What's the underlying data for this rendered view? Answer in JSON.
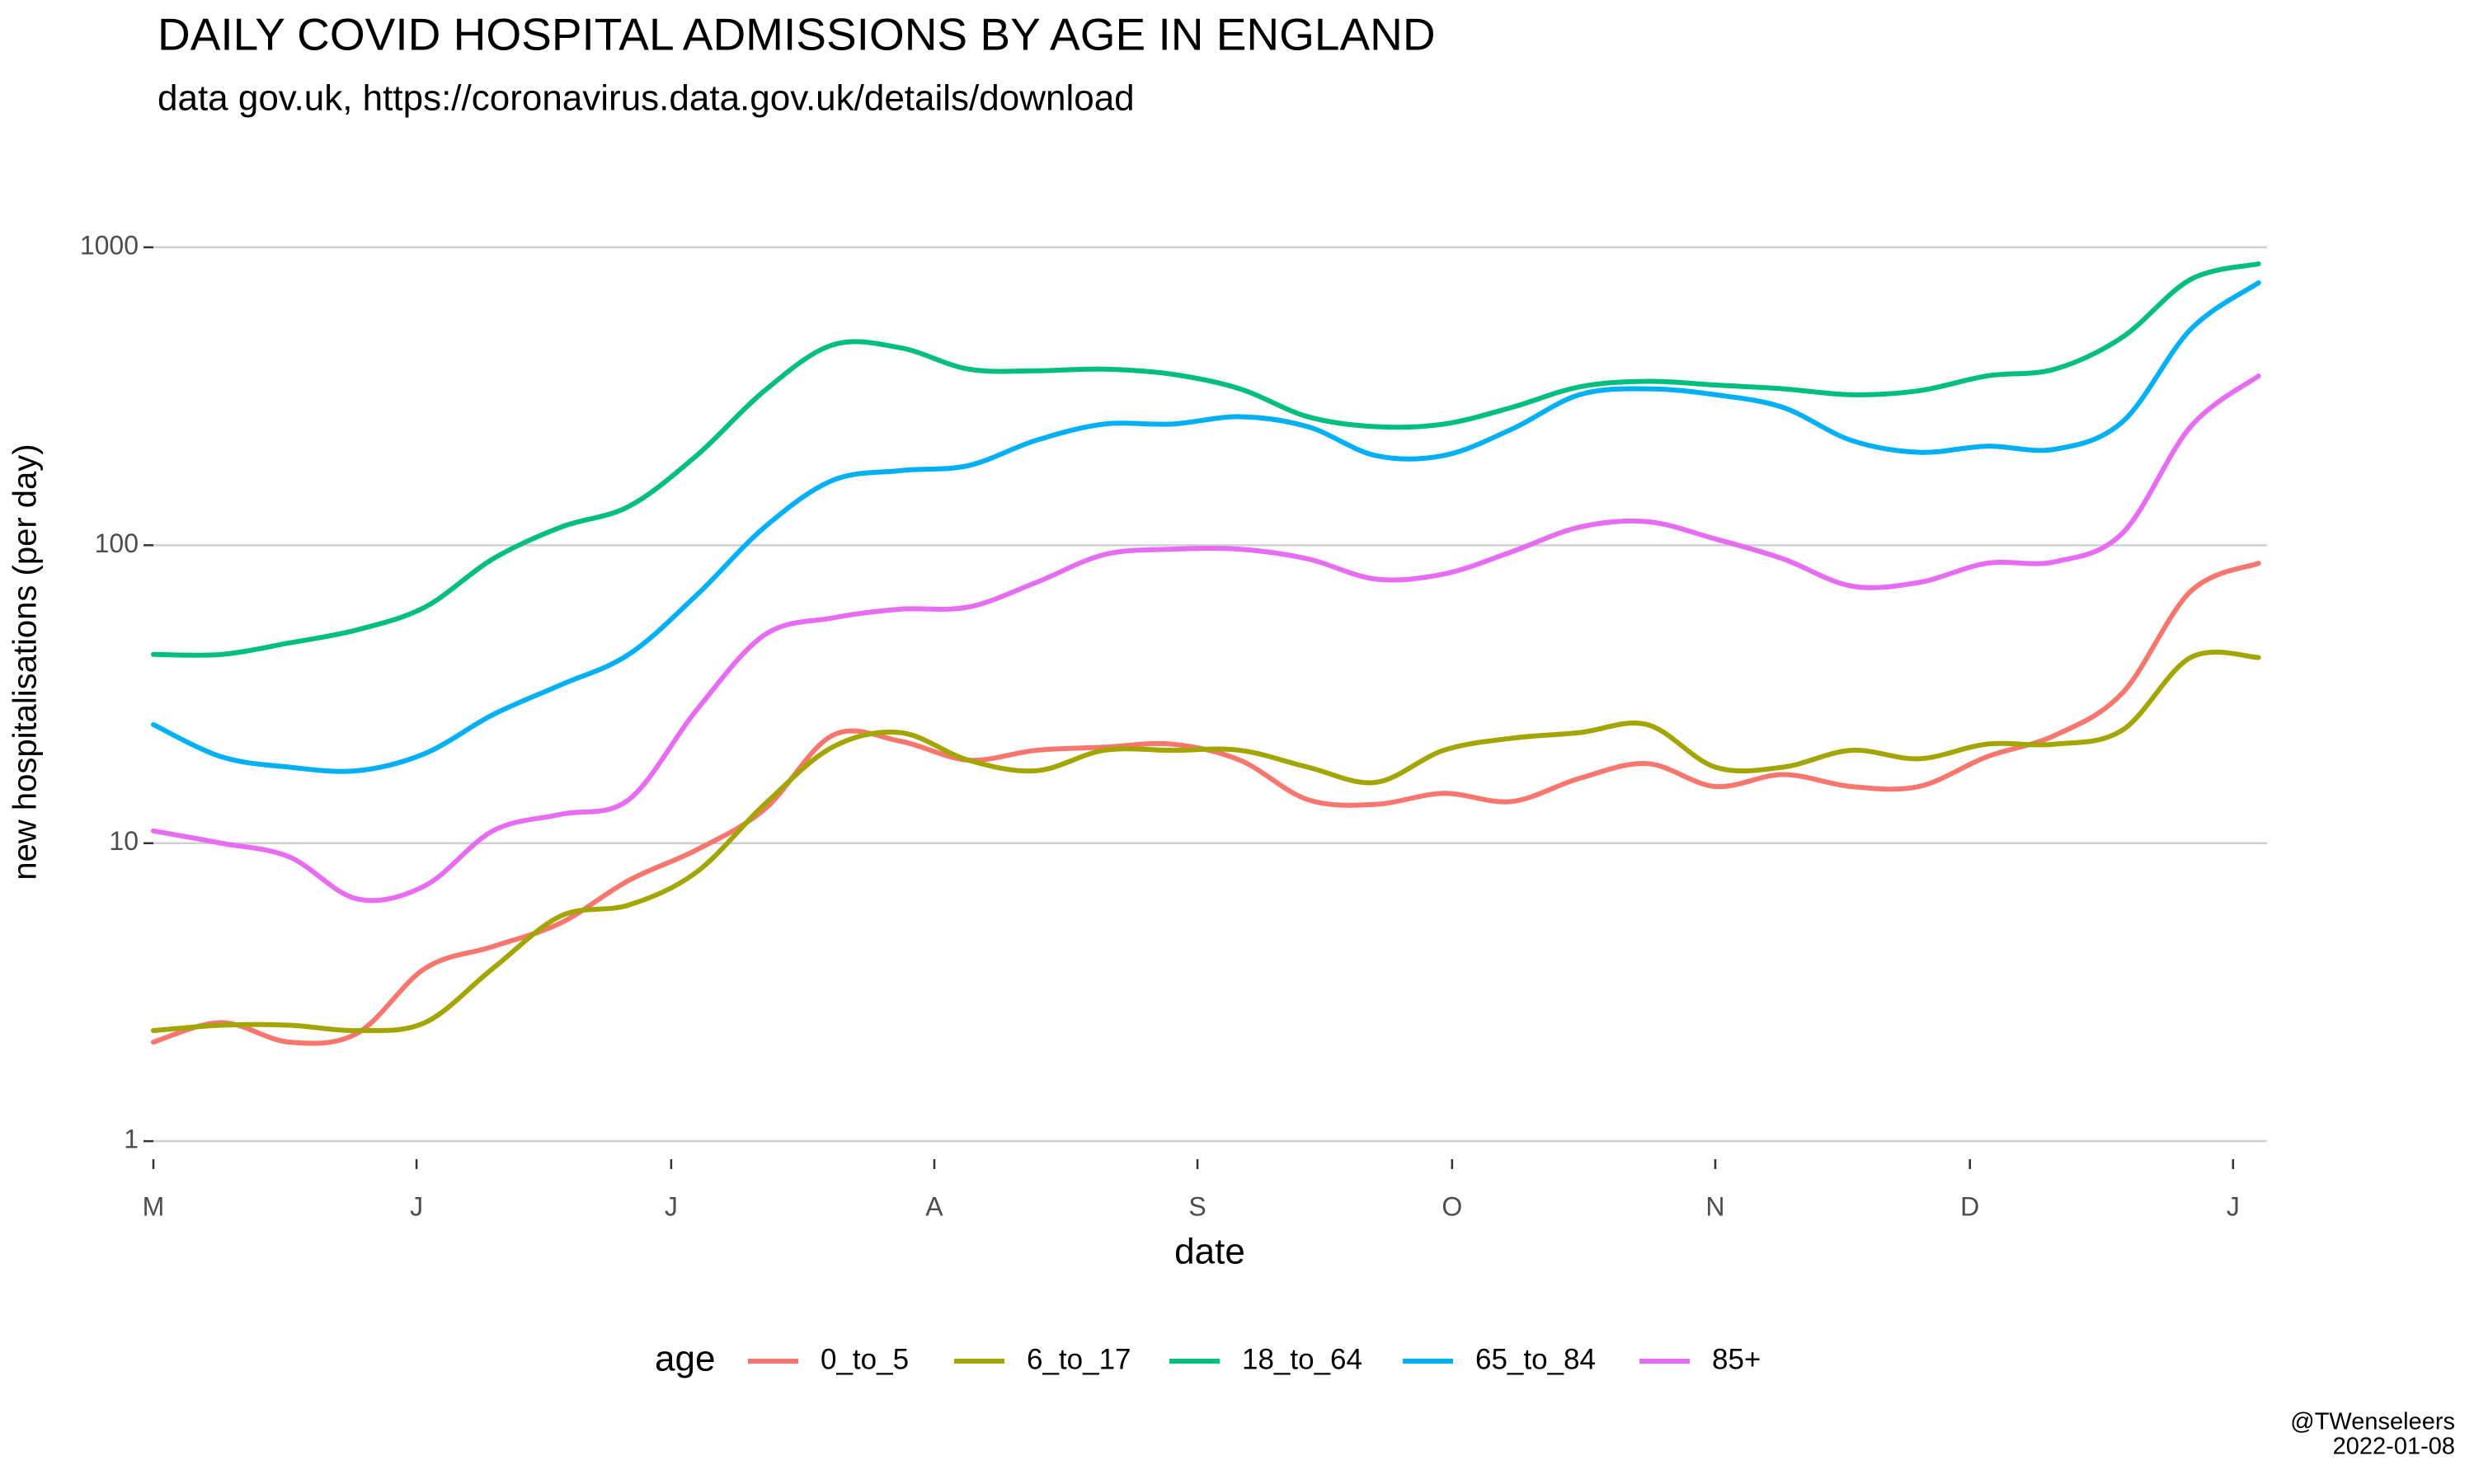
{
  "chart_data": {
    "type": "line",
    "title": "DAILY COVID HOSPITAL ADMISSIONS BY AGE IN ENGLAND",
    "subtitle": "data gov.uk, https://coronavirus.data.gov.uk/details/download",
    "x_label": "date",
    "y_label": "new hospitalisations (per day)",
    "caption": [
      "@TWenseleers",
      "2022-01-08"
    ],
    "legend_title": "age",
    "legend": "bottom",
    "grid": true,
    "log_y": true,
    "xlim": [
      0,
      249
    ],
    "xticks": [
      {
        "value": 0,
        "label": "M"
      },
      {
        "value": 31,
        "label": "J"
      },
      {
        "value": 61,
        "label": "J"
      },
      {
        "value": 92,
        "label": "A"
      },
      {
        "value": 123,
        "label": "S"
      },
      {
        "value": 153,
        "label": "O"
      },
      {
        "value": 184,
        "label": "N"
      },
      {
        "value": 214,
        "label": "D"
      },
      {
        "value": 245,
        "label": "J"
      }
    ],
    "ylim": [
      0.87,
      1150
    ],
    "yticks": [
      1,
      10,
      100,
      1000
    ],
    "x": [
      0,
      8,
      16,
      24,
      32,
      40,
      48,
      56,
      64,
      72,
      80,
      88,
      96,
      104,
      112,
      120,
      128,
      136,
      144,
      152,
      160,
      168,
      176,
      184,
      192,
      200,
      208,
      216,
      224,
      232,
      240,
      248
    ],
    "series": [
      {
        "name": "0_to_5",
        "color": "#f8766d",
        "values": [
          2.15,
          2.5,
          2.15,
          2.3,
          3.8,
          4.5,
          5.4,
          7.5,
          9.5,
          13,
          23,
          22,
          19,
          20.5,
          21,
          21.5,
          19,
          14,
          13.5,
          14.7,
          13.8,
          16.5,
          18.5,
          15.5,
          17,
          15.5,
          15.5,
          19.5,
          23,
          32,
          70,
          87
        ]
      },
      {
        "name": "6_to_17",
        "color": "#a3a500",
        "values": [
          2.35,
          2.45,
          2.45,
          2.35,
          2.5,
          3.8,
          5.7,
          6.2,
          8,
          13.5,
          21,
          23.5,
          19,
          17.5,
          20.5,
          20.5,
          20.5,
          18,
          16,
          20.5,
          22.5,
          23.5,
          25,
          18,
          18,
          20.5,
          19.2,
          21.5,
          21.5,
          24,
          42,
          42
        ]
      },
      {
        "name": "18_to_64",
        "color": "#00bf7d",
        "values": [
          43,
          43,
          47,
          52,
          62,
          90,
          115,
          135,
          200,
          330,
          470,
          460,
          390,
          385,
          390,
          375,
          335,
          270,
          250,
          255,
          290,
          340,
          355,
          345,
          335,
          320,
          330,
          370,
          390,
          500,
          780,
          880
        ]
      },
      {
        "name": "65_to_84",
        "color": "#00b0f6",
        "values": [
          25,
          19.5,
          18,
          17.5,
          20,
          27,
          34,
          43,
          68,
          115,
          165,
          178,
          185,
          225,
          255,
          255,
          270,
          250,
          200,
          200,
          245,
          320,
          335,
          320,
          290,
          225,
          205,
          215,
          210,
          260,
          530,
          760
        ]
      },
      {
        "name": "85+",
        "color": "#e76bf3",
        "values": [
          11,
          10,
          9,
          6.5,
          7.2,
          11,
          12.5,
          14,
          28,
          50,
          57,
          61,
          62,
          75,
          93,
          97,
          97,
          90,
          77,
          80,
          95,
          115,
          120,
          105,
          90,
          73,
          75,
          87,
          88,
          110,
          250,
          370
        ]
      }
    ]
  }
}
